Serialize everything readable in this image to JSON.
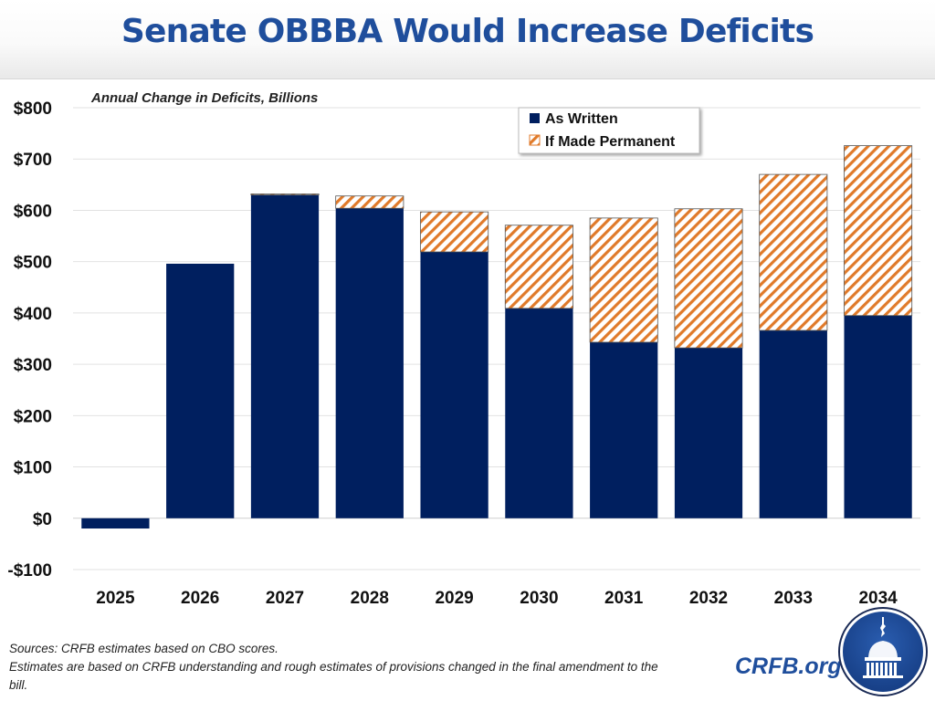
{
  "header": {
    "title": "Senate OBBBA Would Increase Deficits"
  },
  "colors": {
    "as_written": "#001f5f",
    "permanent_stripe": "#e07a2a",
    "title": "#1f4e9c",
    "grid": "#e2e2e2"
  },
  "chart_data": {
    "type": "bar",
    "stacked": true,
    "title": "Senate OBBBA Would Increase Deficits",
    "subtitle": "Annual Change in Deficits, Billions",
    "xlabel": "",
    "ylabel": "",
    "categories": [
      "2025",
      "2026",
      "2027",
      "2028",
      "2029",
      "2030",
      "2031",
      "2032",
      "2033",
      "2034"
    ],
    "series": [
      {
        "name": "As Written",
        "values": [
          -20,
          496,
          630,
          604,
          519,
          409,
          343,
          332,
          366,
          395
        ]
      },
      {
        "name": "If Made Permanent",
        "values": [
          0,
          0,
          2,
          24,
          78,
          162,
          242,
          271,
          304,
          331
        ]
      }
    ],
    "ylim": [
      -100,
      800
    ],
    "yticks": [
      800,
      700,
      600,
      500,
      400,
      300,
      200,
      100,
      0,
      -100
    ],
    "ytick_labels": [
      "$800",
      "$700",
      "$600",
      "$500",
      "$400",
      "$300",
      "$200",
      "$100",
      "$0",
      "-$100"
    ],
    "grid": true,
    "legend_position": "top-right"
  },
  "footer": {
    "sources": "Sources: CRFB estimates based on CBO scores.",
    "note": "Estimates are based on CRFB understanding and rough estimates of provisions changed in the final amendment to the bill.",
    "brand": "CRFB.org",
    "logo_icon": "capitol-dome-logo"
  }
}
